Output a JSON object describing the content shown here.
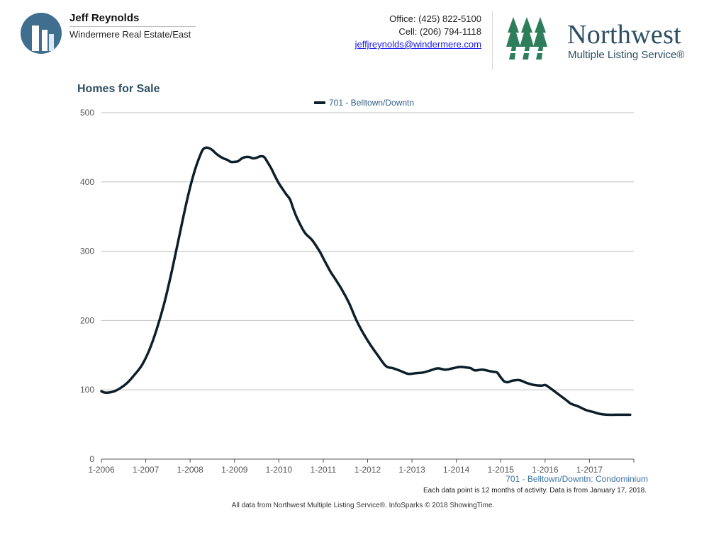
{
  "agent": {
    "name": "Jeff Reynolds",
    "office": "Windermere Real Estate/East"
  },
  "contact": {
    "office_phone": "Office: (425) 822-5100",
    "cell_phone": "Cell: (206) 794-1118",
    "email": "jeffjreynolds@windermere.com"
  },
  "brand": {
    "name": "Northwest",
    "subtitle": "Multiple Listing Service®",
    "logo_color": "#2e7d5b",
    "text_color": "#2d4f63"
  },
  "chart_data": {
    "type": "line",
    "title": "Homes for Sale",
    "legend": [
      "701 - Belltown/Downtn"
    ],
    "series_caption": "701 - Belltown/Downtn: Condominium",
    "xlabel": "",
    "ylabel": "",
    "ylim": [
      0,
      500
    ],
    "yticks": [
      0,
      100,
      200,
      300,
      400,
      500
    ],
    "xlim": [
      2006.0,
      2018.0
    ],
    "xticks": [
      "1-2006",
      "1-2007",
      "1-2008",
      "1-2009",
      "1-2010",
      "1-2011",
      "1-2012",
      "1-2013",
      "1-2014",
      "1-2015",
      "1-2016",
      "1-2017"
    ],
    "grid": true,
    "line_color": "#0c1f2a",
    "series": [
      {
        "name": "701 - Belltown/Downtn",
        "x": [
          2006.0,
          2006.083,
          2006.25,
          2006.417,
          2006.583,
          2006.75,
          2006.917,
          2007.083,
          2007.25,
          2007.417,
          2007.583,
          2007.75,
          2007.917,
          2008.083,
          2008.25,
          2008.333,
          2008.417,
          2008.5,
          2008.583,
          2008.667,
          2008.75,
          2008.833,
          2008.917,
          2009.0,
          2009.083,
          2009.167,
          2009.25,
          2009.333,
          2009.417,
          2009.5,
          2009.583,
          2009.667,
          2009.75,
          2009.833,
          2009.917,
          2010.0,
          2010.083,
          2010.167,
          2010.25,
          2010.333,
          2010.417,
          2010.583,
          2010.75,
          2010.917,
          2011.0,
          2011.167,
          2011.25,
          2011.417,
          2011.583,
          2011.75,
          2011.917,
          2012.083,
          2012.25,
          2012.417,
          2012.583,
          2012.75,
          2012.917,
          2013.083,
          2013.25,
          2013.417,
          2013.583,
          2013.75,
          2013.917,
          2014.083,
          2014.25,
          2014.333,
          2014.417,
          2014.583,
          2014.75,
          2014.833,
          2014.917,
          2015.0,
          2015.083,
          2015.167,
          2015.25,
          2015.417,
          2015.583,
          2015.75,
          2015.917,
          2016.0,
          2016.083,
          2016.25,
          2016.417,
          2016.5,
          2016.583,
          2016.75,
          2016.917,
          2017.083,
          2017.25,
          2017.417,
          2017.583,
          2017.75,
          2017.917
        ],
        "values": [
          98,
          96,
          97,
          102,
          110,
          122,
          136,
          158,
          188,
          225,
          270,
          320,
          370,
          412,
          442,
          449,
          449,
          446,
          441,
          437,
          434,
          432,
          429,
          429,
          430,
          434,
          436,
          436,
          434,
          435,
          437,
          436,
          428,
          419,
          408,
          398,
          390,
          382,
          375,
          360,
          347,
          327,
          316,
          300,
          290,
          270,
          262,
          245,
          225,
          200,
          180,
          163,
          148,
          134,
          131,
          127,
          123,
          124,
          125,
          128,
          131,
          129,
          131,
          133,
          132,
          131,
          128,
          129,
          127,
          126,
          125,
          118,
          112,
          111,
          113,
          114,
          110,
          107,
          106,
          107,
          104,
          96,
          88,
          84,
          80,
          76,
          71,
          68,
          65,
          64,
          64,
          64,
          64
        ]
      }
    ]
  },
  "notes": {
    "data_point_note": "Each data point is 12 months of activity. Data is from January 17, 2018.",
    "footer": "All data from Northwest Multiple Listing Service®. InfoSparks © 2018 ShowingTime."
  }
}
